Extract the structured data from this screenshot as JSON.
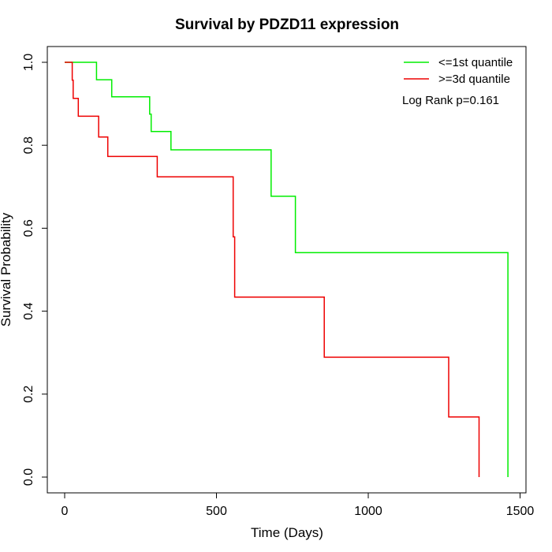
{
  "chart_data": {
    "type": "line",
    "title": "Survival by PDZD11 expression",
    "xlabel": "Time (Days)",
    "ylabel": "Survival Probability",
    "xlim": [
      0,
      1500
    ],
    "ylim": [
      0,
      1
    ],
    "xticks": [
      0,
      500,
      1000,
      1500
    ],
    "yticks": [
      0.0,
      0.2,
      0.4,
      0.6,
      0.8,
      1.0
    ],
    "xtick_labels": [
      "0",
      "500",
      "1000",
      "1500"
    ],
    "ytick_labels": [
      "0.0",
      "0.2",
      "0.4",
      "0.6",
      "0.8",
      "1.0"
    ],
    "grid": false,
    "legend_position": "top-right",
    "annotation": "Log Rank p=0.161",
    "series": [
      {
        "name": "<=1st quantile",
        "color": "#00ee00",
        "points": [
          [
            0,
            1.0
          ],
          [
            105,
            1.0
          ],
          [
            105,
            0.958
          ],
          [
            155,
            0.958
          ],
          [
            155,
            0.917
          ],
          [
            280,
            0.917
          ],
          [
            280,
            0.875
          ],
          [
            285,
            0.875
          ],
          [
            285,
            0.833
          ],
          [
            350,
            0.833
          ],
          [
            350,
            0.789
          ],
          [
            680,
            0.789
          ],
          [
            680,
            0.677
          ],
          [
            760,
            0.677
          ],
          [
            760,
            0.541
          ],
          [
            1460,
            0.541
          ],
          [
            1460,
            0.0
          ]
        ]
      },
      {
        "name": ">=3d quantile",
        "color": "#ee0000",
        "points": [
          [
            0,
            1.0
          ],
          [
            25,
            1.0
          ],
          [
            25,
            0.957
          ],
          [
            28,
            0.957
          ],
          [
            28,
            0.913
          ],
          [
            45,
            0.913
          ],
          [
            45,
            0.87
          ],
          [
            112,
            0.87
          ],
          [
            112,
            0.82
          ],
          [
            142,
            0.82
          ],
          [
            142,
            0.773
          ],
          [
            305,
            0.773
          ],
          [
            305,
            0.724
          ],
          [
            555,
            0.724
          ],
          [
            555,
            0.579
          ],
          [
            560,
            0.579
          ],
          [
            560,
            0.434
          ],
          [
            855,
            0.434
          ],
          [
            855,
            0.289
          ],
          [
            1265,
            0.289
          ],
          [
            1265,
            0.145
          ],
          [
            1365,
            0.145
          ],
          [
            1365,
            0.0
          ]
        ]
      }
    ]
  }
}
